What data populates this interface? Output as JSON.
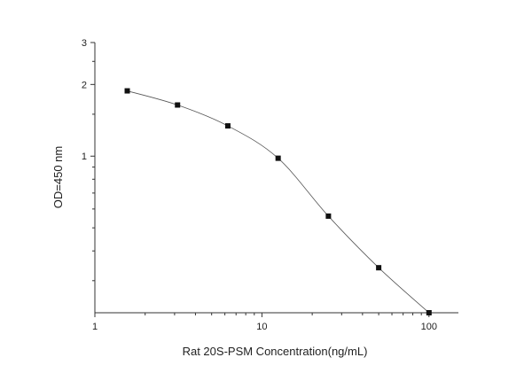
{
  "chart_data": {
    "type": "scatter",
    "title": "",
    "xlabel": "Rat 20S-PSM  Concentration(ng/mL)",
    "ylabel": "OD=450 nm",
    "xscale": "log",
    "yscale": "log",
    "xlim": [
      1,
      150
    ],
    "ylim": [
      0.22,
      3
    ],
    "x_ticks": [
      1,
      10,
      100
    ],
    "x_tick_labels": [
      "1",
      "10",
      "100"
    ],
    "y_ticks": [
      1,
      2,
      3
    ],
    "y_tick_labels": [
      "1",
      "2",
      "3"
    ],
    "grid": false,
    "legend": "none",
    "series": [
      {
        "x": [
          1.5625,
          3.125,
          6.25,
          12.5,
          25,
          50,
          100
        ],
        "y": [
          1.88,
          1.64,
          1.34,
          0.98,
          0.56,
          0.34,
          0.22
        ],
        "marker": "square",
        "line": "smooth"
      }
    ],
    "colors": {
      "marker": "#111111",
      "line": "#555555",
      "axis": "#333333"
    }
  }
}
